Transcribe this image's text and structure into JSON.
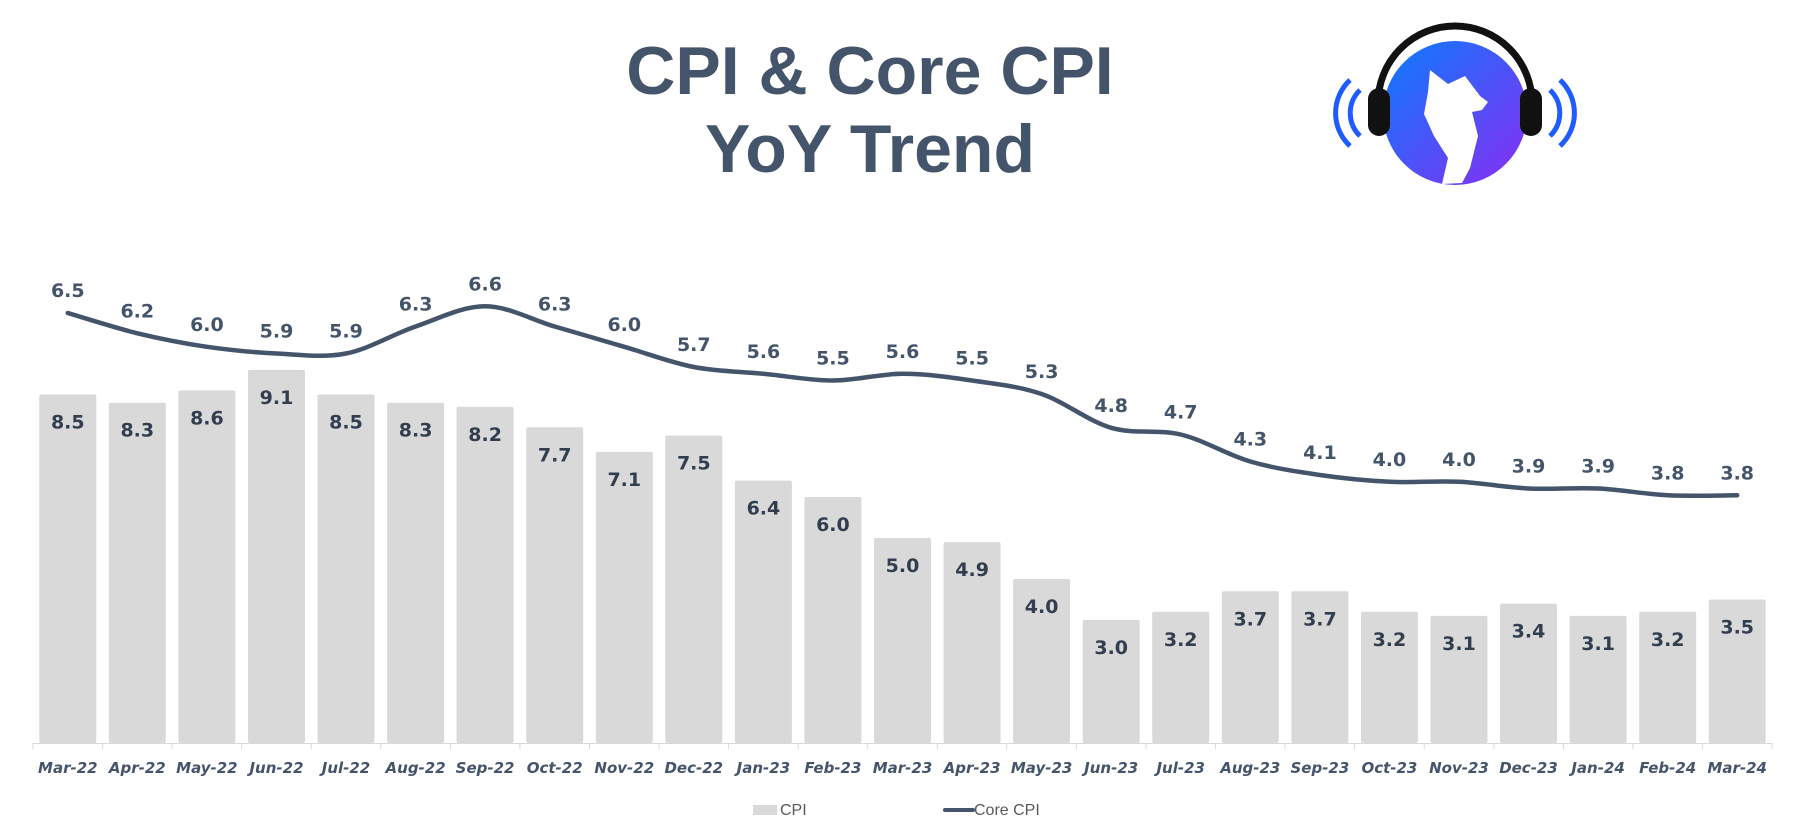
{
  "colors": {
    "bar": "#d9d9d9",
    "line": "#44546a",
    "title": "#44546a",
    "logo_blue": "#1e5cff",
    "logo_purple": "#7b2cf5"
  },
  "logo": {
    "icon": "howling-wolf-headphones-logo"
  },
  "chart_data": {
    "type": "bar",
    "title_lines": [
      "CPI & Core CPI",
      "YoY Trend"
    ],
    "xlabel": "",
    "ylabel": "",
    "ylim": [
      0,
      10
    ],
    "grid": false,
    "legend_position": "bottom",
    "categories": [
      "Mar-22",
      "Apr-22",
      "May-22",
      "Jun-22",
      "Jul-22",
      "Aug-22",
      "Sep-22",
      "Oct-22",
      "Nov-22",
      "Dec-22",
      "Jan-23",
      "Feb-23",
      "Mar-23",
      "Apr-23",
      "May-23",
      "Jun-23",
      "Jul-23",
      "Aug-23",
      "Sep-23",
      "Oct-23",
      "Nov-23",
      "Dec-23",
      "Jan-24",
      "Feb-24",
      "Mar-24"
    ],
    "series": [
      {
        "name": "CPI",
        "type": "bar",
        "values": [
          8.5,
          8.3,
          8.6,
          9.1,
          8.5,
          8.3,
          8.2,
          7.7,
          7.1,
          7.5,
          6.4,
          6.0,
          5.0,
          4.9,
          4.0,
          3.0,
          3.2,
          3.7,
          3.7,
          3.2,
          3.1,
          3.4,
          3.1,
          3.2,
          3.5
        ],
        "labels": [
          "8.5",
          "8.3",
          "8.6",
          "9.1",
          "8.5",
          "8.3",
          "8.2",
          "7.7",
          "7.1",
          "7.5",
          "6.4",
          "6.0",
          "5.0",
          "4.9",
          "4.0",
          "3.0",
          "3.2",
          "3.7",
          "3.7",
          "3.2",
          "3.1",
          "3.4",
          "3.1",
          "3.2",
          "3.5"
        ]
      },
      {
        "name": "Core CPI",
        "type": "line",
        "values": [
          6.5,
          6.2,
          6.0,
          5.9,
          5.9,
          6.3,
          6.6,
          6.3,
          6.0,
          5.7,
          5.6,
          5.5,
          5.6,
          5.5,
          5.3,
          4.8,
          4.7,
          4.3,
          4.1,
          4.0,
          4.0,
          3.9,
          3.9,
          3.8,
          3.8
        ],
        "labels": [
          "6.5",
          "6.2",
          "6.0",
          "5.9",
          "5.9",
          "6.3",
          "6.6",
          "6.3",
          "6.0",
          "5.7",
          "5.6",
          "5.5",
          "5.6",
          "5.5",
          "5.3",
          "4.8",
          "4.7",
          "4.3",
          "4.1",
          "4.0",
          "4.0",
          "3.9",
          "3.9",
          "3.8",
          "3.8"
        ]
      }
    ]
  }
}
